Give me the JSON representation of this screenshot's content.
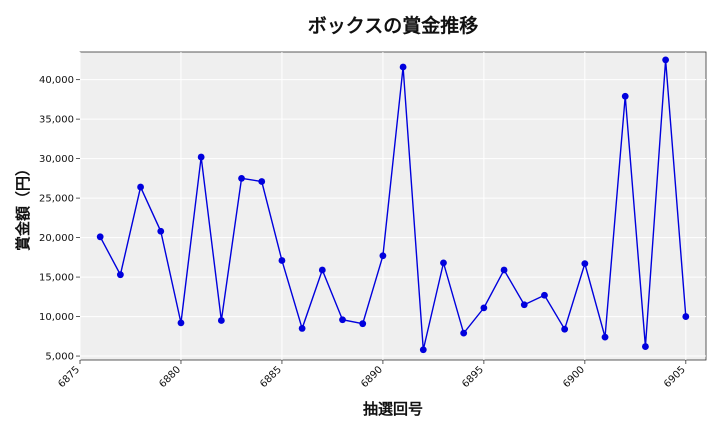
{
  "chart_data": {
    "type": "line",
    "title": "ボックスの賞金推移",
    "xlabel": "抽選回号",
    "ylabel": "賞金額（円）",
    "xlim": [
      6875,
      6906
    ],
    "ylim": [
      4500,
      43500
    ],
    "x_ticks": [
      6875,
      6880,
      6885,
      6890,
      6895,
      6900,
      6905
    ],
    "y_ticks": [
      5000,
      10000,
      15000,
      20000,
      25000,
      30000,
      35000,
      40000
    ],
    "x_tick_labels": [
      "6875",
      "6880",
      "6885",
      "6890",
      "6895",
      "6900",
      "6905"
    ],
    "y_tick_labels": [
      "5,000",
      "10,000",
      "15,000",
      "20,000",
      "25,000",
      "30,000",
      "35,000",
      "40,000"
    ],
    "grid": true,
    "series": [
      {
        "color": "#0000dd",
        "x": [
          6876,
          6877,
          6878,
          6879,
          6880,
          6881,
          6882,
          6883,
          6884,
          6885,
          6886,
          6887,
          6888,
          6889,
          6890,
          6891,
          6892,
          6893,
          6894,
          6895,
          6896,
          6897,
          6898,
          6899,
          6900,
          6901,
          6902,
          6903,
          6904,
          6905
        ],
        "y": [
          20100,
          15300,
          26400,
          20800,
          9200,
          30200,
          9500,
          27500,
          27100,
          17100,
          8500,
          15900,
          9600,
          9100,
          17700,
          41600,
          5800,
          16800,
          7900,
          11100,
          15900,
          11500,
          12700,
          8400,
          16700,
          7400,
          37900,
          6200,
          42500,
          10000
        ]
      }
    ]
  }
}
